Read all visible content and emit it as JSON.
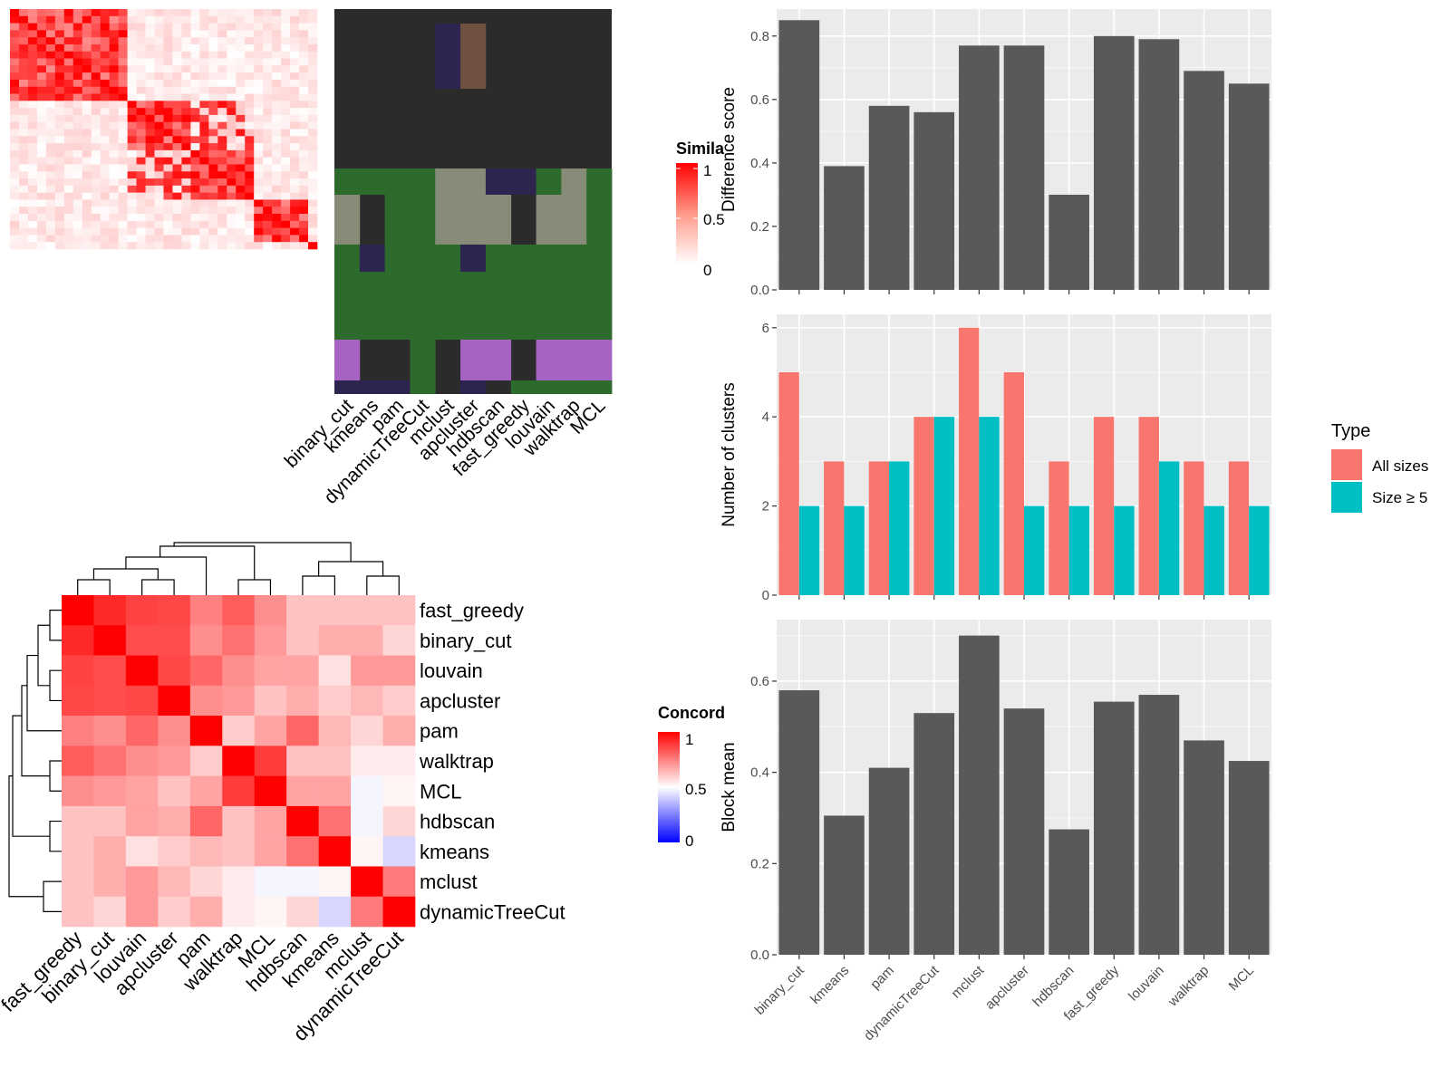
{
  "colors": {
    "panel_bg": "#ebebeb",
    "grid": "#ffffff",
    "bar_dark": "#595959",
    "all_sizes": "#f8766d",
    "size5": "#00bfc4",
    "heat_high": "#ff0000",
    "heat_low": "#ffffff",
    "heat_zero": "#0000ff",
    "track_dark": "#2a2b2a",
    "track_green": "#2d6b2d",
    "track_grey": "#868c78",
    "track_purple": "#a763c4",
    "track_navy": "#2d2450",
    "track_brown": "#6e5140"
  },
  "similarity_legend": {
    "title": "Simila",
    "ticks": [
      "1",
      "0.5",
      "0"
    ]
  },
  "concordance_legend": {
    "title": "Concord",
    "ticks": [
      "1",
      "0.5",
      "0"
    ]
  },
  "track_labels": [
    "binary_cut",
    "kmeans",
    "pam",
    "dynamicTreeCut",
    "mclust",
    "apcluster",
    "hdbscan",
    "fast_greedy",
    "louvain",
    "walktrap",
    "MCL"
  ],
  "chart_data": [
    {
      "type": "heatmap",
      "name": "concordance",
      "row_labels": [
        "fast_greedy",
        "binary_cut",
        "louvain",
        "apcluster",
        "pam",
        "walktrap",
        "MCL",
        "hdbscan",
        "kmeans",
        "mclust",
        "dynamicTreeCut"
      ],
      "col_labels": [
        "fast_greedy",
        "binary_cut",
        "louvain",
        "apcluster",
        "pam",
        "walktrap",
        "MCL",
        "hdbscan",
        "kmeans",
        "mclust",
        "dynamicTreeCut"
      ],
      "values": [
        [
          1.0,
          0.92,
          0.87,
          0.86,
          0.75,
          0.82,
          0.72,
          0.62,
          0.62,
          0.62,
          0.62
        ],
        [
          0.92,
          1.0,
          0.85,
          0.85,
          0.72,
          0.78,
          0.7,
          0.62,
          0.66,
          0.66,
          0.58
        ],
        [
          0.87,
          0.85,
          1.0,
          0.86,
          0.8,
          0.72,
          0.68,
          0.68,
          0.56,
          0.7,
          0.7
        ],
        [
          0.86,
          0.85,
          0.86,
          1.0,
          0.72,
          0.7,
          0.62,
          0.66,
          0.6,
          0.64,
          0.6
        ],
        [
          0.75,
          0.72,
          0.8,
          0.72,
          1.0,
          0.6,
          0.68,
          0.8,
          0.64,
          0.58,
          0.66
        ],
        [
          0.82,
          0.78,
          0.72,
          0.7,
          0.6,
          1.0,
          0.88,
          0.62,
          0.62,
          0.54,
          0.54
        ],
        [
          0.72,
          0.7,
          0.68,
          0.62,
          0.68,
          0.88,
          1.0,
          0.68,
          0.68,
          0.48,
          0.52
        ],
        [
          0.62,
          0.62,
          0.68,
          0.66,
          0.8,
          0.62,
          0.68,
          1.0,
          0.78,
          0.48,
          0.58
        ],
        [
          0.62,
          0.66,
          0.56,
          0.6,
          0.64,
          0.62,
          0.68,
          0.78,
          1.0,
          0.52,
          0.42
        ],
        [
          0.62,
          0.66,
          0.7,
          0.64,
          0.58,
          0.54,
          0.48,
          0.48,
          0.52,
          1.0,
          0.76
        ],
        [
          0.62,
          0.58,
          0.7,
          0.6,
          0.66,
          0.54,
          0.52,
          0.58,
          0.42,
          0.76,
          1.0
        ]
      ]
    },
    {
      "type": "bar",
      "name": "difference-score",
      "categories": [
        "binary_cut",
        "kmeans",
        "pam",
        "dynamicTreeCut",
        "mclust",
        "apcluster",
        "hdbscan",
        "fast_greedy",
        "louvain",
        "walktrap",
        "MCL"
      ],
      "values": [
        0.85,
        0.39,
        0.58,
        0.56,
        0.77,
        0.77,
        0.3,
        0.8,
        0.79,
        0.69,
        0.65
      ],
      "ylabel": "Difference score",
      "ylim": [
        0,
        0.885
      ],
      "yticks": [
        0.0,
        0.2,
        0.4,
        0.6,
        0.8
      ],
      "grid": true
    },
    {
      "type": "bar",
      "name": "number-of-clusters",
      "categories": [
        "binary_cut",
        "kmeans",
        "pam",
        "dynamicTreeCut",
        "mclust",
        "apcluster",
        "hdbscan",
        "fast_greedy",
        "louvain",
        "walktrap",
        "MCL"
      ],
      "series": [
        {
          "name": "All sizes",
          "values": [
            5,
            3,
            3,
            4,
            6,
            5,
            3,
            4,
            4,
            3,
            3
          ]
        },
        {
          "name": "Size ≥ 5",
          "values": [
            2,
            2,
            3,
            4,
            4,
            2,
            2,
            2,
            3,
            2,
            2
          ]
        }
      ],
      "ylabel": "Number of clusters",
      "ylim": [
        0,
        6.3
      ],
      "yticks": [
        0,
        2,
        4,
        6
      ],
      "legend": {
        "title": "Type",
        "position": "right"
      },
      "grid": true
    },
    {
      "type": "bar",
      "name": "block-mean",
      "categories": [
        "binary_cut",
        "kmeans",
        "pam",
        "dynamicTreeCut",
        "mclust",
        "apcluster",
        "hdbscan",
        "fast_greedy",
        "louvain",
        "walktrap",
        "MCL"
      ],
      "values": [
        0.58,
        0.305,
        0.41,
        0.53,
        0.7,
        0.54,
        0.275,
        0.555,
        0.57,
        0.47,
        0.425
      ],
      "ylabel": "Block mean",
      "ylim": [
        0,
        0.735
      ],
      "yticks": [
        0.0,
        0.2,
        0.4,
        0.6
      ],
      "grid": true
    }
  ]
}
